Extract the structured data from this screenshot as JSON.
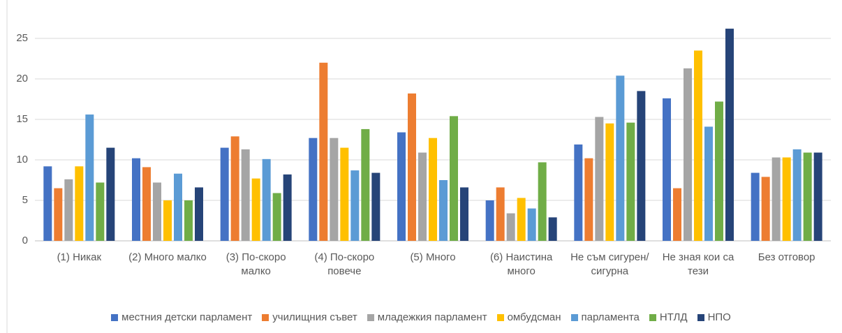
{
  "chart_data": {
    "type": "bar",
    "categories": [
      "(1) Никак",
      "(2) Много малко",
      "(3) По-скоро малко",
      "(4) По-скоро повече",
      "(5) Много",
      "(6) Наистина много",
      "Не съм сигурен/ сигурна",
      "Не зная кои са тези",
      "Без отговор"
    ],
    "series": [
      {
        "name": "местния детски парламент",
        "color": "#4472c4",
        "values": [
          9.2,
          10.2,
          11.5,
          12.7,
          13.4,
          5.0,
          11.9,
          17.6,
          8.4
        ]
      },
      {
        "name": "училищния съвет",
        "color": "#ed7d31",
        "values": [
          6.5,
          9.1,
          12.9,
          22.0,
          18.2,
          6.6,
          10.2,
          6.5,
          7.9
        ]
      },
      {
        "name": "младежкия парламент",
        "color": "#a5a5a5",
        "values": [
          7.6,
          7.2,
          11.3,
          12.7,
          10.9,
          3.4,
          15.3,
          21.3,
          10.3
        ]
      },
      {
        "name": "омбудсман",
        "color": "#ffc000",
        "values": [
          9.2,
          5.0,
          7.7,
          11.5,
          12.7,
          5.3,
          14.5,
          23.5,
          10.3
        ]
      },
      {
        "name": "парламента",
        "color": "#5b9bd5",
        "values": [
          15.6,
          8.3,
          10.1,
          8.7,
          7.5,
          4.0,
          20.4,
          14.1,
          11.3
        ]
      },
      {
        "name": "НТЛД",
        "color": "#70ad47",
        "values": [
          7.2,
          5.0,
          5.9,
          13.8,
          15.4,
          9.7,
          14.6,
          17.2,
          10.9
        ]
      },
      {
        "name": "НПО",
        "color": "#264478",
        "values": [
          11.5,
          6.6,
          8.2,
          8.4,
          6.6,
          2.9,
          18.5,
          26.2,
          10.9
        ]
      }
    ],
    "ylim": [
      0,
      27
    ],
    "yticks": [
      0,
      5,
      10,
      15,
      20,
      25
    ],
    "grid": true,
    "legend": "bottom"
  }
}
